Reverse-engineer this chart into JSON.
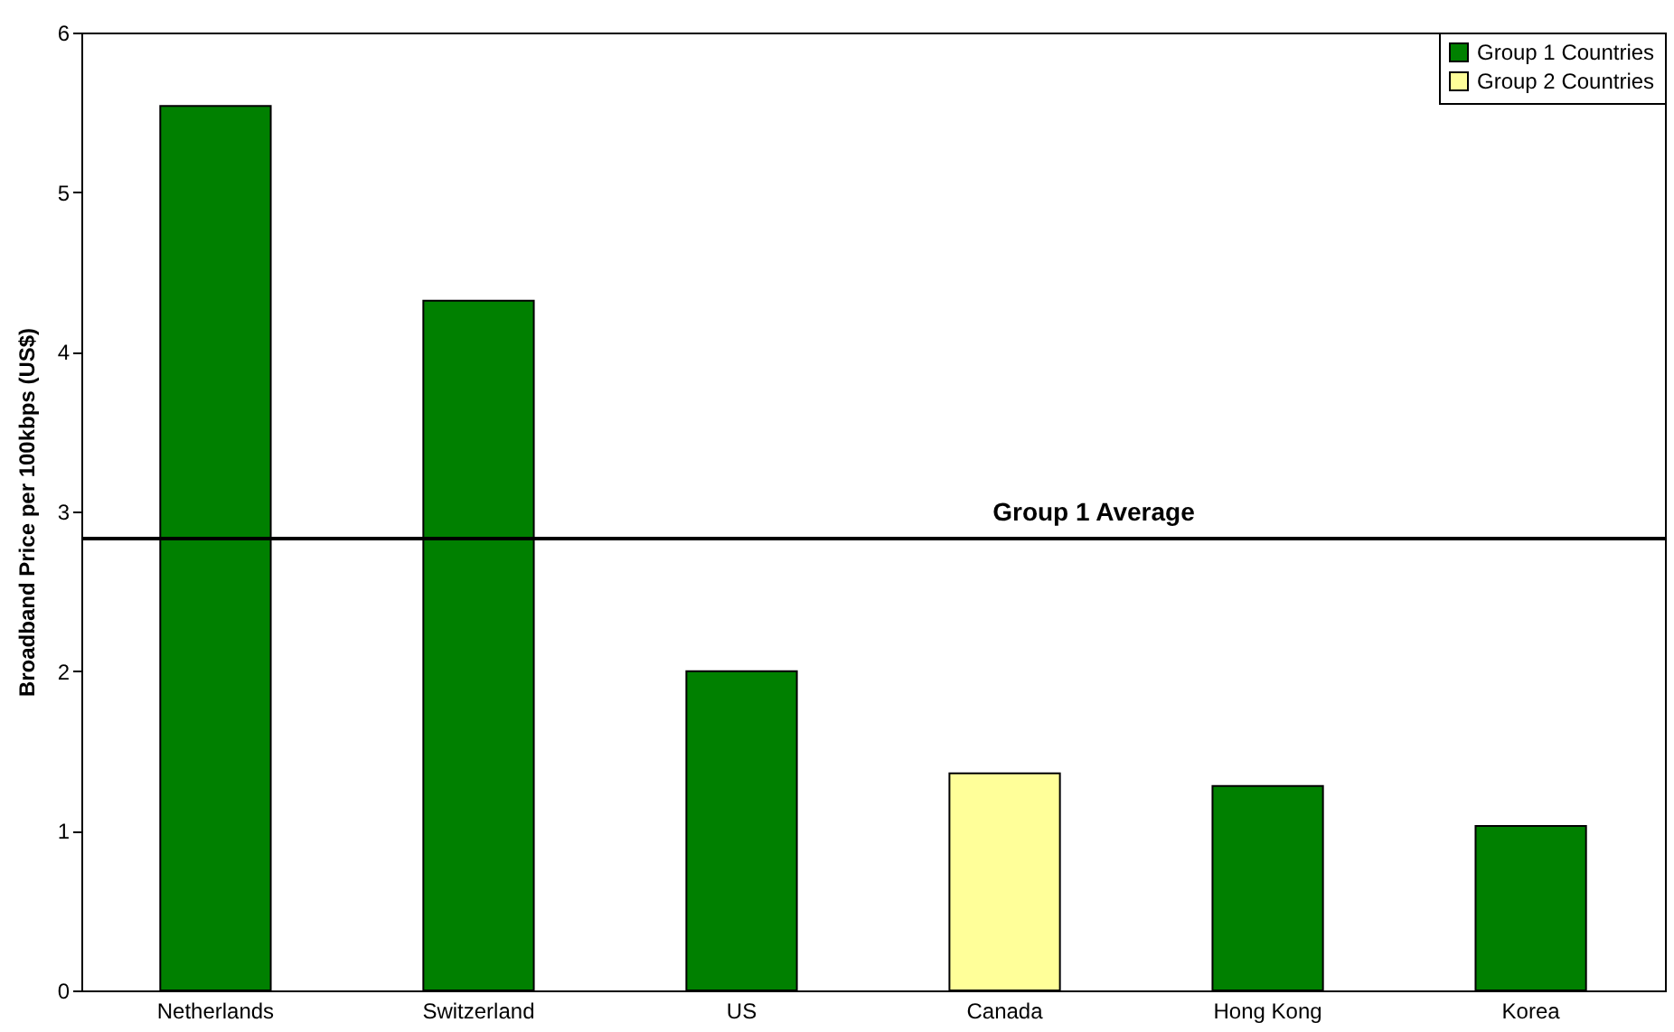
{
  "chart_data": {
    "type": "bar",
    "ylabel": "Broadband Price per 100kbps (US$)",
    "categories": [
      "Netherlands",
      "Switzerland",
      "US",
      "Canada",
      "Hong Kong",
      "Korea"
    ],
    "series": [
      {
        "name": "Group 1 Countries",
        "color": "#008000",
        "values": [
          5.54,
          4.32,
          2.0,
          null,
          1.28,
          1.03
        ]
      },
      {
        "name": "Group 2 Countries",
        "color": "#ffff99",
        "values": [
          null,
          null,
          null,
          1.36,
          null,
          null
        ]
      }
    ],
    "ylim": [
      0,
      6
    ],
    "yticks": [
      0,
      1,
      2,
      3,
      4,
      5,
      6
    ],
    "legend": "top right",
    "ref_lines": [
      {
        "axis": "y",
        "value": 2.83,
        "label": "Group 1 Average",
        "color": "#000000"
      }
    ]
  }
}
